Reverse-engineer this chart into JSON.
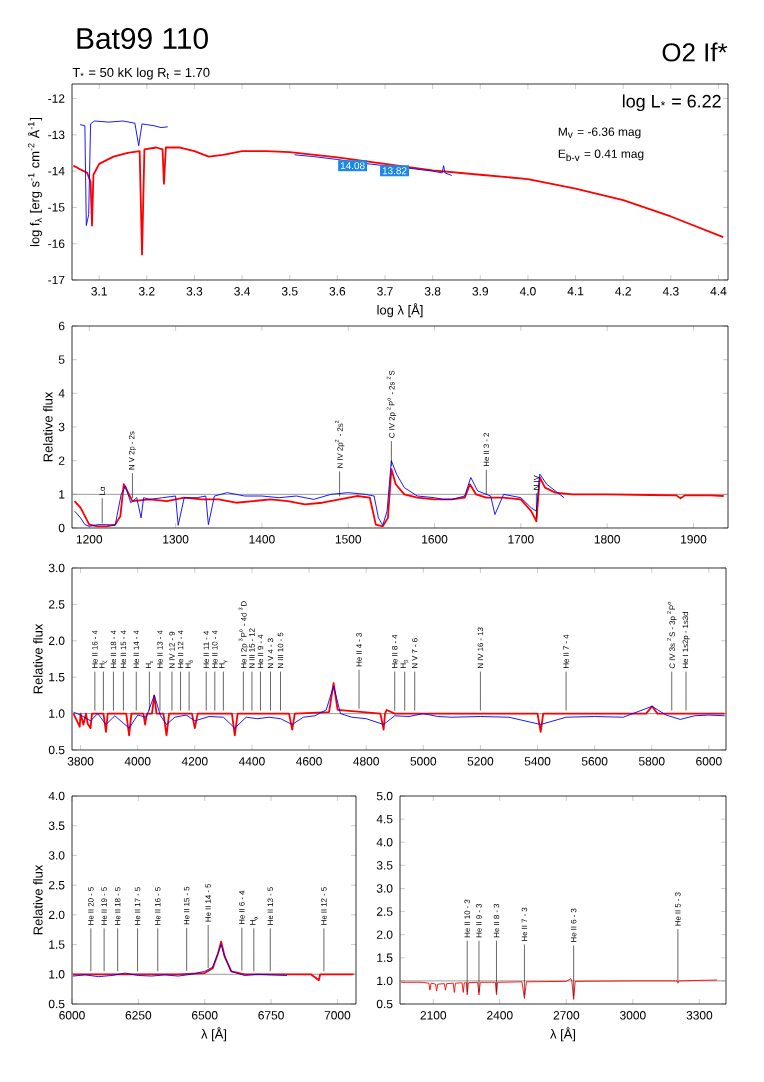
{
  "chart_data": [
    {
      "type": "line",
      "title": "Bat99 110",
      "subtitle": "T$_{*}$ =  50 kK  log R$_{t}$ = 1.70",
      "xlabel": "log λ [Å]",
      "ylabel": "log f$_{λ}$ [erg s$^{-1}$ cm$^{-2}$ Å$^{-1}$]",
      "xlim": [
        3.043,
        4.42
      ],
      "ylim": [
        -17,
        -11.6
      ],
      "xticks": [
        3.1,
        3.2,
        3.3,
        3.4,
        3.5,
        3.6,
        3.7,
        3.8,
        3.9,
        {
          "value": 4.0,
          "label": "4.0"
        },
        4.1,
        4.2,
        4.3,
        4.4
      ],
      "yticks": [
        -17,
        -16,
        -15,
        -14,
        -13,
        -12
      ],
      "annotations": [
        "O2 If*",
        "log L$_{*}$ = 6.22",
        "M$_{v}$ = -6.36 mag",
        "E$_{b-v}$ = 0.41 mag",
        {
          "text": "14.08",
          "x": 3.632,
          "y": -13.74
        },
        {
          "text": "13.82",
          "x": 3.72,
          "y": -13.88
        }
      ],
      "series": [
        {
          "color": "#ff0000",
          "x": [
            3.046,
            3.06,
            3.075,
            3.082,
            3.085,
            3.088,
            3.1,
            3.13,
            3.16,
            3.185,
            3.19,
            3.195,
            3.22,
            3.233,
            3.236,
            3.24,
            3.27,
            3.3,
            3.33,
            3.36,
            3.4,
            3.45,
            3.5,
            3.6,
            3.7,
            3.8,
            3.9,
            4.0,
            4.1,
            4.2,
            4.3,
            4.41
          ],
          "values": [
            -13.85,
            -13.95,
            -14.05,
            -14.3,
            -15.5,
            -14.1,
            -13.8,
            -13.6,
            -13.5,
            -13.45,
            -16.3,
            -13.4,
            -13.35,
            -13.4,
            -14.35,
            -13.35,
            -13.35,
            -13.45,
            -13.6,
            -13.55,
            -13.45,
            -13.45,
            -13.48,
            -13.62,
            -13.8,
            -13.98,
            -14.1,
            -14.22,
            -14.48,
            -14.8,
            -15.25,
            -15.82
          ]
        },
        {
          "color": "#0000ff",
          "x": [
            3.06,
            3.07,
            3.073,
            3.078,
            3.082,
            3.09,
            3.12,
            3.15,
            3.175,
            3.183,
            3.19,
            3.2,
            3.215,
            3.23,
            3.244,
            3.5,
            3.51,
            3.55,
            3.6,
            3.65,
            3.7,
            3.75,
            3.8,
            3.82,
            3.823,
            3.826,
            3.84
          ],
          "values": [
            -12.72,
            -12.75,
            -15.5,
            -15.2,
            -12.7,
            -12.62,
            -12.65,
            -12.62,
            -12.68,
            -13.3,
            -12.7,
            -12.72,
            -12.75,
            -12.8,
            -12.78,
            null,
            -13.55,
            -13.6,
            -13.68,
            -13.78,
            -13.85,
            -13.92,
            -14.0,
            -14.05,
            -13.85,
            -14.05,
            -14.12
          ]
        }
      ]
    },
    {
      "type": "line",
      "ylabel": "Relative flux",
      "xlim": [
        1180,
        1940
      ],
      "ylim": [
        0,
        6
      ],
      "xticks": [
        1200,
        1300,
        1400,
        1500,
        1600,
        1700,
        1800,
        1900
      ],
      "yticks": [
        0,
        1,
        2,
        3,
        4,
        5,
        6
      ],
      "ref_lines": [
        {
          "axis": "y",
          "value": 1,
          "color": "#808080"
        }
      ],
      "annotations": [
        {
          "text": "Lα",
          "x": 1215,
          "y": 0.05
        },
        {
          "text": "N V 2p - 2s",
          "x": 1250,
          "y": 0.8
        },
        {
          "text": "N IV 2p$^{2}$ - 2s$^{2}$",
          "x": 1490,
          "y": 0.85
        },
        {
          "text": "C IV 2p $^{2}$P$^{o}$ - 2s $^{2}$S",
          "x": 1550,
          "y": 1.75
        },
        {
          "text": "He II 3 - 2",
          "x": 1660,
          "y": 0.9
        },
        {
          "text": "N IV",
          "x": 1718,
          "y": 0.2
        }
      ],
      "series": [
        {
          "color": "#ff0000",
          "x": [
            1183,
            1190,
            1200,
            1210,
            1220,
            1230,
            1236,
            1240,
            1244,
            1250,
            1270,
            1290,
            1310,
            1330,
            1350,
            1370,
            1390,
            1410,
            1430,
            1450,
            1470,
            1490,
            1510,
            1525,
            1532,
            1540,
            1546,
            1550,
            1555,
            1565,
            1580,
            1600,
            1620,
            1635,
            1641,
            1648,
            1660,
            1680,
            1700,
            1712,
            1718,
            1722,
            1728,
            1740,
            1760,
            1800,
            1850,
            1880,
            1885,
            1890,
            1920,
            1935
          ],
          "values": [
            0.8,
            0.6,
            0.1,
            0.05,
            0.05,
            0.1,
            0.35,
            1.3,
            1.1,
            0.8,
            0.85,
            0.8,
            0.9,
            0.85,
            0.85,
            0.75,
            0.8,
            0.85,
            0.8,
            0.7,
            0.75,
            0.85,
            0.95,
            0.9,
            0.1,
            0.05,
            0.3,
            1.75,
            1.3,
            1.0,
            0.9,
            0.85,
            0.85,
            0.9,
            1.3,
            1.0,
            0.9,
            0.9,
            0.85,
            0.5,
            0.2,
            1.5,
            1.2,
            1.05,
            1.0,
            1.0,
            0.98,
            0.97,
            0.88,
            0.97,
            0.97,
            0.95
          ]
        },
        {
          "color": "#0000ff",
          "x": [
            1183,
            1190,
            1195,
            1200,
            1210,
            1220,
            1230,
            1237,
            1242,
            1248,
            1255,
            1260,
            1263,
            1270,
            1285,
            1300,
            1303,
            1310,
            1325,
            1335,
            1338,
            1345,
            1360,
            1380,
            1400,
            1420,
            1440,
            1460,
            1480,
            1500,
            1520,
            1530,
            1535,
            1540,
            1545,
            1550,
            1556,
            1565,
            1580,
            1600,
            1610,
            1620,
            1635,
            1642,
            1650,
            1665,
            1670,
            1680,
            1700,
            1712,
            1718,
            1722,
            1730,
            1740,
            1750
          ],
          "values": [
            0.5,
            0.3,
            0.1,
            0.05,
            0.1,
            0.1,
            0.08,
            1.0,
            1.25,
            0.75,
            0.9,
            0.3,
            0.9,
            0.85,
            0.9,
            0.95,
            0.08,
            0.9,
            0.9,
            0.95,
            0.1,
            0.95,
            1.05,
            0.95,
            0.95,
            0.9,
            0.95,
            0.85,
            1.0,
            1.05,
            1.0,
            0.95,
            0.3,
            0.08,
            0.5,
            2.0,
            1.6,
            1.2,
            0.95,
            0.9,
            0.85,
            0.85,
            0.95,
            1.5,
            1.1,
            0.95,
            0.4,
            1.0,
            0.9,
            0.6,
            0.5,
            1.6,
            1.3,
            1.1,
            0.9
          ]
        }
      ]
    },
    {
      "type": "line",
      "ylabel": "Relative flux",
      "xlim": [
        3770,
        6060
      ],
      "ylim": [
        0.5,
        3.0
      ],
      "xticks": [
        3800,
        4000,
        4200,
        4400,
        4600,
        4800,
        5000,
        5200,
        5400,
        5600,
        5800,
        6000
      ],
      "yticks": [
        0.5,
        {
          "value": 1,
          "label": "1.0"
        },
        1.5,
        {
          "value": 2,
          "label": "2.0"
        },
        2.5,
        {
          "value": 3,
          "label": "3.0"
        }
      ],
      "ref_lines": [
        {
          "axis": "y",
          "value": 1,
          "color": "#808080"
        }
      ],
      "annotations": [
        {
          "text": "He II 16 - 4",
          "x": 3850,
          "y": 1.0
        },
        {
          "text": "H$_{ζ}$",
          "x": 3880,
          "y": 1.0
        },
        {
          "text": "He II 18 - 4",
          "x": 3915,
          "y": 1.0
        },
        {
          "text": "He II 15 - 4",
          "x": 3950,
          "y": 1.0
        },
        {
          "text": "He II 14 - 4",
          "x": 3995,
          "y": 1.0
        },
        {
          "text": "H$_{ε}$",
          "x": 4041,
          "y": 1.0
        },
        {
          "text": "He II 13 - 4",
          "x": 4078,
          "y": 1.0
        },
        {
          "text": "N IV 12 - 9",
          "x": 4120,
          "y": 1.0
        },
        {
          "text": "He II 12 - 4",
          "x": 4150,
          "y": 1.0
        },
        {
          "text": "H$_{δ}$",
          "x": 4180,
          "y": 1.0
        },
        {
          "text": "He II 11 - 4",
          "x": 4240,
          "y": 1.0
        },
        {
          "text": "He II 10 - 4",
          "x": 4270,
          "y": 1.0
        },
        {
          "text": "H$_{γ}$",
          "x": 4300,
          "y": 1.0
        },
        {
          "text": "He I 2p $^{3}$P$^{o}$ - 4d $^{3}$D",
          "x": 4370,
          "y": 1.0
        },
        {
          "text": "N III 15 - 12",
          "x": 4400,
          "y": 1.0
        },
        {
          "text": "He II 9 - 4",
          "x": 4430,
          "y": 1.0
        },
        {
          "text": "N V 4 - 3",
          "x": 4465,
          "y": 1.0
        },
        {
          "text": "N III 10 - 5",
          "x": 4500,
          "y": 1.0
        },
        {
          "text": "He II 4 - 3",
          "x": 4775,
          "y": 1.025
        },
        {
          "text": "He II 8 - 4",
          "x": 4900,
          "y": 1.0
        },
        {
          "text": "H$_{β}$",
          "x": 4935,
          "y": 1.0
        },
        {
          "text": "N V 7 - 6",
          "x": 4970,
          "y": 1.0
        },
        {
          "text": "N IV 16 - 13",
          "x": 5200,
          "y": 1.0
        },
        {
          "text": "He II 7 - 4",
          "x": 5500,
          "y": 1.0
        },
        {
          "text": "C IV 3s $^{2}$S - 3p $^{2}$P$^{o}$",
          "x": 5870,
          "y": 1.0
        },
        {
          "text": "He I 1s2p - 1s3d",
          "x": 5920,
          "y": 1.0
        }
      ],
      "series": [
        {
          "color": "#ff0000",
          "x": [
            3775,
            3797,
            3800,
            3810,
            3819,
            3825,
            3835,
            3840,
            3880,
            3889,
            3895,
            3960,
            3970,
            3978,
            4020,
            4026,
            4032,
            4050,
            4058,
            4066,
            4090,
            4101,
            4110,
            4190,
            4200,
            4210,
            4330,
            4340,
            4350,
            4530,
            4541,
            4550,
            4670,
            4686,
            4700,
            4850,
            4861,
            4866,
            4872,
            4900,
            5400,
            5411,
            5420,
            5780,
            5801,
            5820,
            6055
          ],
          "values": [
            1.0,
            0.82,
            1.0,
            0.85,
            1.0,
            0.86,
            0.8,
            1.0,
            1.0,
            0.75,
            1.0,
            1.0,
            0.7,
            1.0,
            1.0,
            0.85,
            1.0,
            1.0,
            1.25,
            1.0,
            1.0,
            0.7,
            1.0,
            1.0,
            0.8,
            1.0,
            1.0,
            0.7,
            1.0,
            1.0,
            0.78,
            1.0,
            1.02,
            1.42,
            1.05,
            1.0,
            0.78,
            1.0,
            1.05,
            1.0,
            1.0,
            0.75,
            1.0,
            1.0,
            1.1,
            1.0,
            1.0
          ]
        },
        {
          "color": "#0000ff",
          "x": [
            3775,
            3800,
            3835,
            3860,
            3889,
            3920,
            3970,
            4000,
            4030,
            4058,
            4080,
            4101,
            4130,
            4170,
            4200,
            4250,
            4300,
            4340,
            4380,
            4420,
            4460,
            4500,
            4541,
            4580,
            4620,
            4660,
            4686,
            4710,
            4750,
            4800,
            4861,
            4900,
            4950,
            5000,
            5050,
            5100,
            5200,
            5300,
            5411,
            5500,
            5600,
            5700,
            5801,
            5850,
            5900,
            5950,
            6000,
            6055
          ],
          "values": [
            1.02,
            0.98,
            0.9,
            1.0,
            0.85,
            0.97,
            0.8,
            0.98,
            0.95,
            1.25,
            0.97,
            0.85,
            0.95,
            0.98,
            0.9,
            0.96,
            0.95,
            0.8,
            0.95,
            0.93,
            0.95,
            0.93,
            0.85,
            0.95,
            0.97,
            1.05,
            1.38,
            1.0,
            0.95,
            0.93,
            0.85,
            0.97,
            0.96,
            1.0,
            0.96,
            0.95,
            0.96,
            0.95,
            0.85,
            0.95,
            0.96,
            0.95,
            1.1,
            0.98,
            0.92,
            0.97,
            0.98,
            0.97
          ]
        }
      ]
    },
    {
      "type": "line",
      "xlabel": "λ [Å]",
      "ylabel": "Relative flux",
      "xlim": [
        6000,
        7070
      ],
      "ylim": [
        0.5,
        4.0
      ],
      "xticks": [
        6000,
        6250,
        6500,
        6750,
        7000
      ],
      "yticks": [
        0.5,
        {
          "value": 1,
          "label": "1.0"
        },
        1.5,
        {
          "value": 2,
          "label": "2.0"
        },
        2.5,
        {
          "value": 3,
          "label": "3.0"
        },
        3.5,
        {
          "value": 4,
          "label": "4.0"
        }
      ],
      "ref_lines": [
        {
          "axis": "y",
          "value": 1,
          "color": "#808080"
        }
      ],
      "annotations": [
        {
          "text": "He II 20 - 5",
          "x": 6071,
          "y": 1.0
        },
        {
          "text": "He II 19 - 5",
          "x": 6121,
          "y": 1.0
        },
        {
          "text": "He II 18 - 5",
          "x": 6172,
          "y": 1.0
        },
        {
          "text": "He II 17 - 5",
          "x": 6247,
          "y": 1.0
        },
        {
          "text": "He II 16 - 5",
          "x": 6323,
          "y": 1.0
        },
        {
          "text": "He II 15 - 5",
          "x": 6432,
          "y": 1.006
        },
        {
          "text": "He II 14 - 5",
          "x": 6513,
          "y": 1.055
        },
        {
          "text": "He II 6 - 4",
          "x": 6640,
          "y": 1.01
        },
        {
          "text": "H$_{α}$",
          "x": 6685,
          "y": 1.0
        },
        {
          "text": "He II 13 - 5",
          "x": 6747,
          "y": 1.0
        },
        {
          "text": "He II 12 - 5",
          "x": 6949,
          "y": 1.0
        }
      ],
      "series": [
        {
          "color": "#ff0000",
          "x": [
            6003,
            6200,
            6400,
            6500,
            6530,
            6550,
            6562,
            6575,
            6600,
            6650,
            6700,
            6900,
            6930,
            6935,
            6940,
            7060
          ],
          "values": [
            1.0,
            1.0,
            1.0,
            1.02,
            1.1,
            1.35,
            1.55,
            1.3,
            1.05,
            1.0,
            1.0,
            1.0,
            0.9,
            1.0,
            1.0,
            1.0
          ]
        },
        {
          "color": "#0000ff",
          "x": [
            6003,
            6050,
            6100,
            6150,
            6200,
            6250,
            6300,
            6350,
            6400,
            6450,
            6500,
            6530,
            6550,
            6562,
            6575,
            6600,
            6650,
            6700,
            6750,
            6810
          ],
          "values": [
            0.97,
            0.99,
            0.96,
            0.98,
            1.02,
            0.98,
            0.97,
            0.99,
            0.97,
            1.0,
            1.05,
            1.12,
            1.35,
            1.5,
            1.3,
            1.05,
            0.98,
            1.0,
            0.99,
            0.98
          ]
        }
      ]
    },
    {
      "type": "line",
      "xlabel": "λ [Å]",
      "xlim": [
        1950,
        3420
      ],
      "ylim": [
        0.5,
        5.0
      ],
      "xticks": [
        2100,
        2400,
        2700,
        3000,
        3300
      ],
      "yticks": [
        0.5,
        {
          "value": 1,
          "label": "1.0"
        },
        1.5,
        {
          "value": 2,
          "label": "2.0"
        },
        2.5,
        {
          "value": 3,
          "label": "3.0"
        },
        3.5,
        {
          "value": 4,
          "label": "4.0"
        },
        4.5,
        {
          "value": 5,
          "label": "5.0"
        }
      ],
      "ref_lines": [
        {
          "axis": "y",
          "value": 1,
          "color": "#808080"
        }
      ],
      "annotations": [
        {
          "text": "He II 10 - 3",
          "x": 2253,
          "y": 0.7
        },
        {
          "text": "He II 9 - 3",
          "x": 2306,
          "y": 0.7
        },
        {
          "text": "He II 8 - 3",
          "x": 2385,
          "y": 0.7
        },
        {
          "text": "He II 7 - 3",
          "x": 2511,
          "y": 0.62
        },
        {
          "text": "He II 6 - 3",
          "x": 2733,
          "y": 0.6
        },
        {
          "text": "He II 5 - 3",
          "x": 3203,
          "y": 0.95
        }
      ],
      "series": [
        {
          "color": "#ff0000",
          "x": [
            1955,
            2050,
            2080,
            2085,
            2090,
            2110,
            2115,
            2120,
            2150,
            2155,
            2160,
            2190,
            2195,
            2200,
            2230,
            2235,
            2240,
            2250,
            2253,
            2258,
            2300,
            2306,
            2312,
            2380,
            2385,
            2390,
            2500,
            2511,
            2520,
            2700,
            2720,
            2725,
            2733,
            2740,
            3000,
            3200,
            3203,
            3206,
            3380
          ],
          "values": [
            0.97,
            0.97,
            0.95,
            0.8,
            0.95,
            0.93,
            0.78,
            0.93,
            0.94,
            0.8,
            0.94,
            0.95,
            0.75,
            0.95,
            0.96,
            0.75,
            0.96,
            0.96,
            0.7,
            0.96,
            0.97,
            0.7,
            0.97,
            0.97,
            0.7,
            0.97,
            0.98,
            0.62,
            0.98,
            0.99,
            1.05,
            0.99,
            0.6,
            0.99,
            1.0,
            1.0,
            0.95,
            1.0,
            1.02
          ]
        }
      ]
    }
  ]
}
